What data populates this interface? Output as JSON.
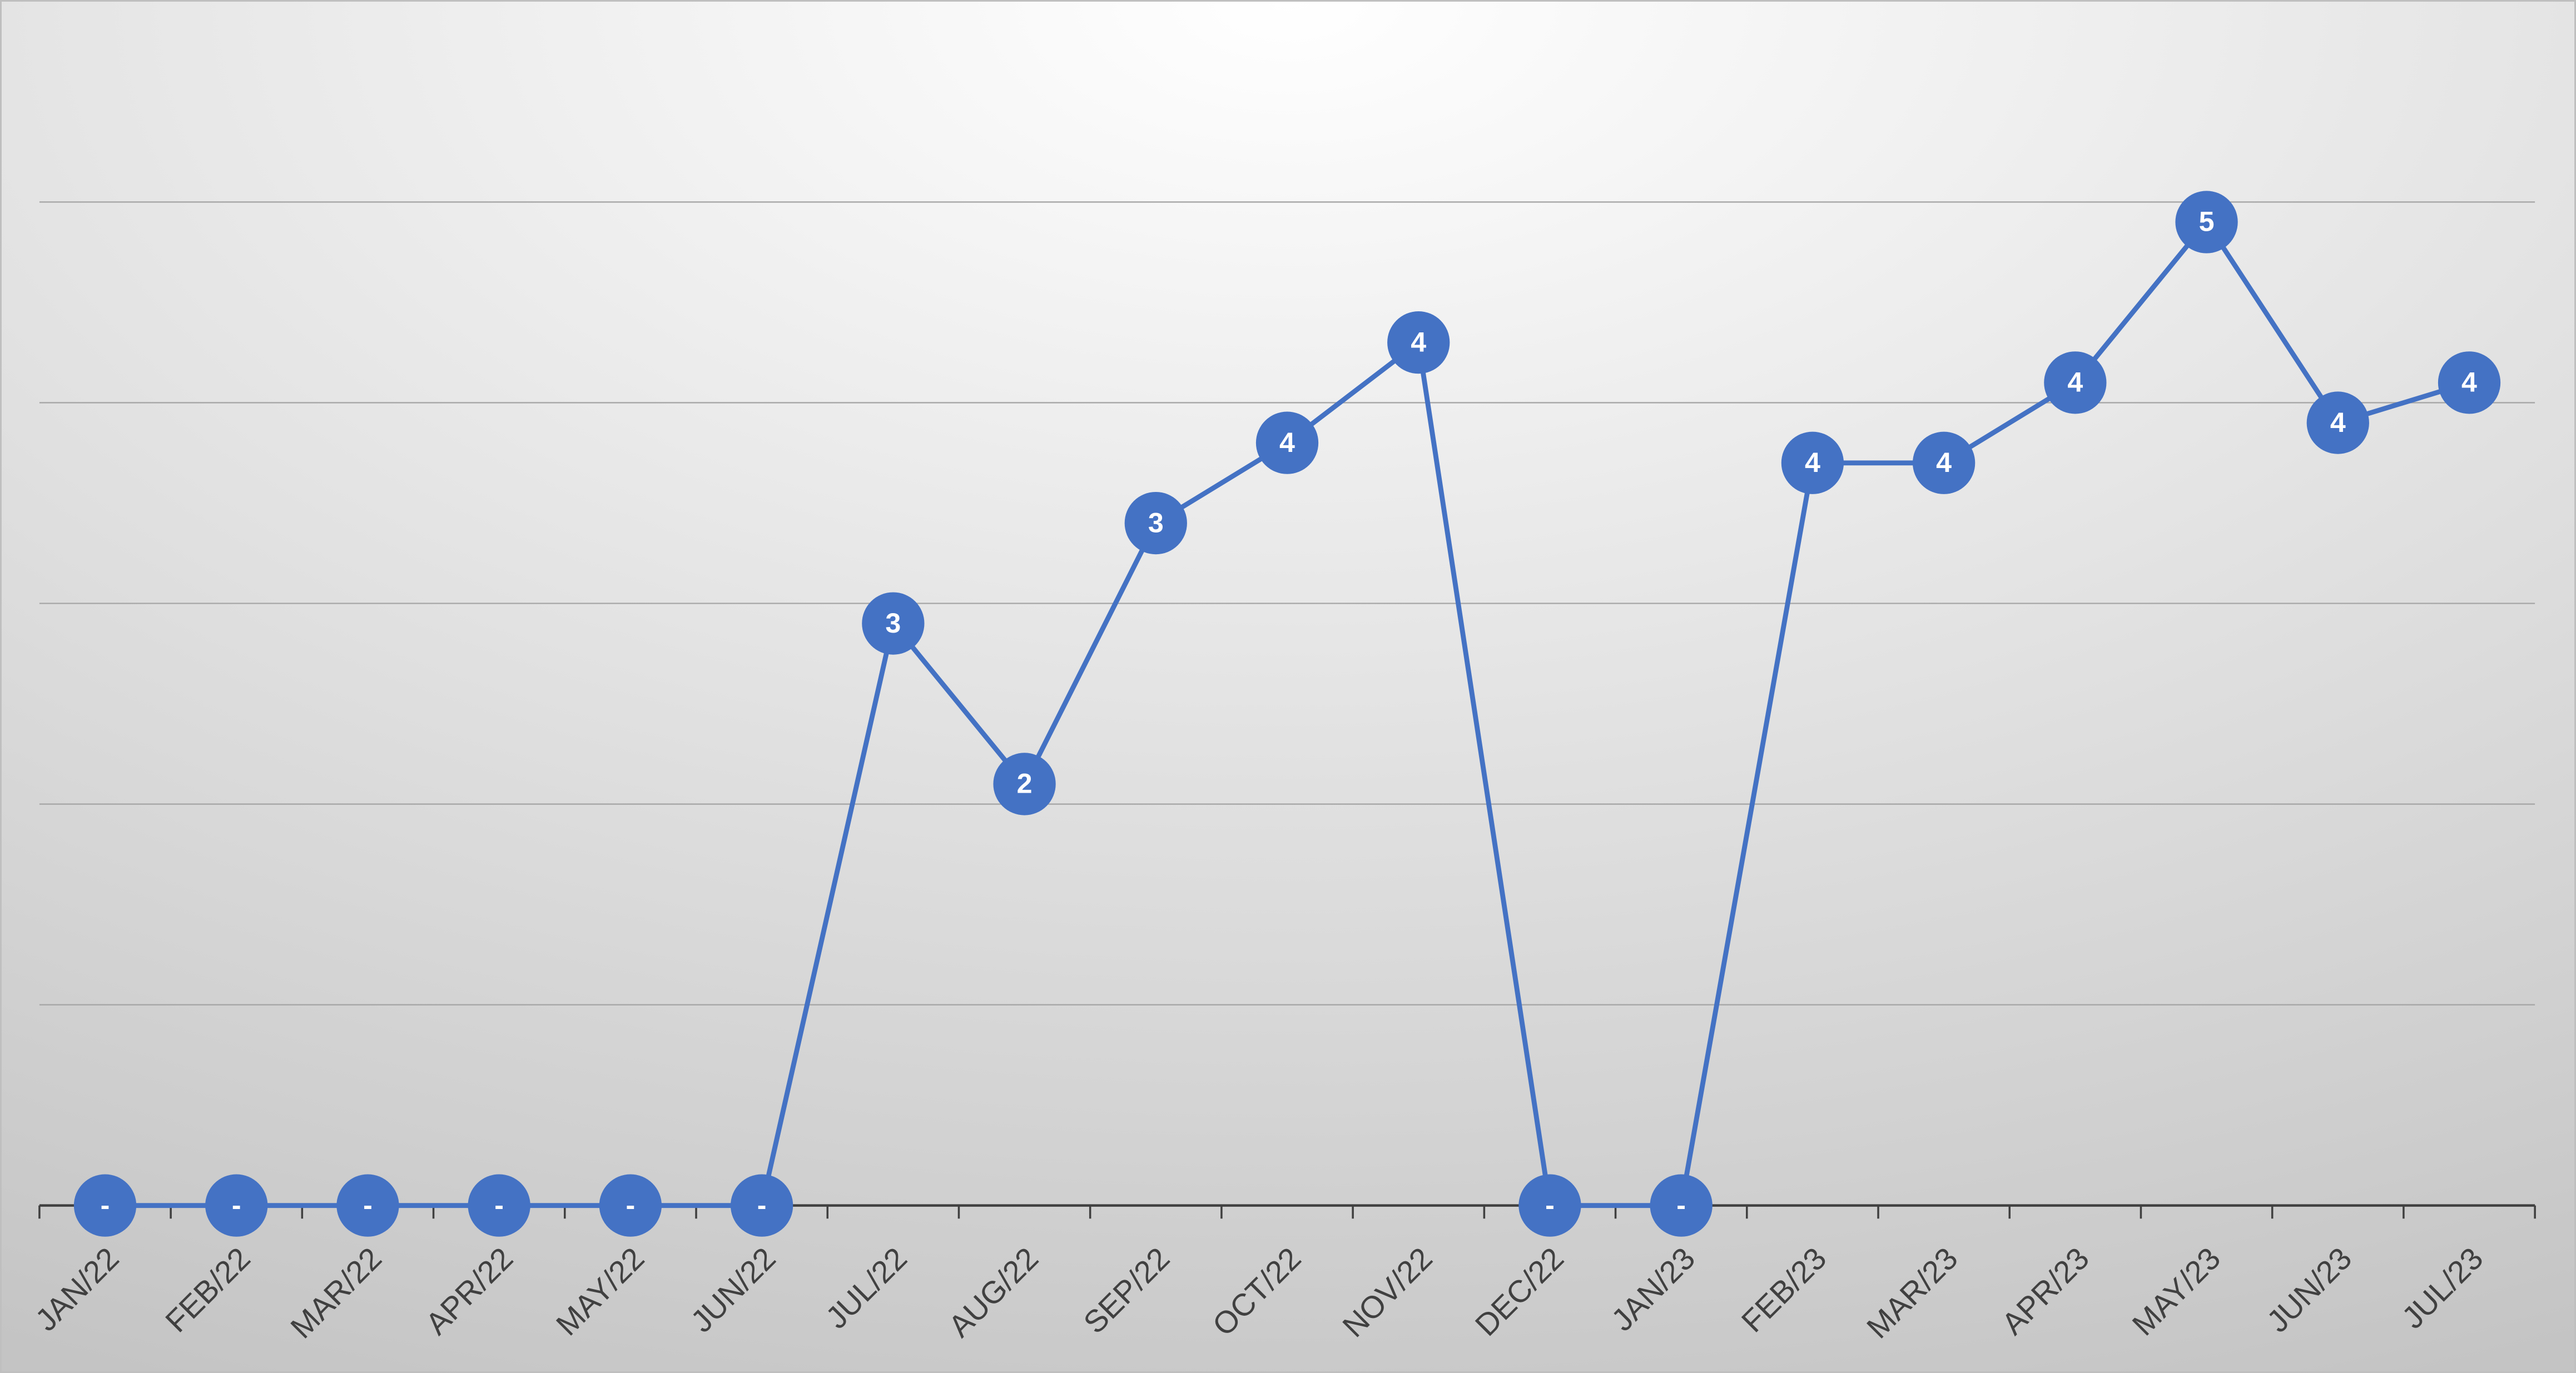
{
  "chart_data": {
    "type": "line",
    "categories": [
      "JAN/22",
      "FEB/22",
      "MAR/22",
      "APR/22",
      "MAY/22",
      "JUN/22",
      "JUL/22",
      "AUG/22",
      "SEP/22",
      "OCT/22",
      "NOV/22",
      "DEC/22",
      "JAN/23",
      "FEB/23",
      "MAR/23",
      "APR/23",
      "MAY/23",
      "JUN/23",
      "JUL/23"
    ],
    "values": [
      0,
      0,
      0,
      0,
      0,
      0,
      2.9,
      2.1,
      3.4,
      3.8,
      4.3,
      0,
      0,
      3.7,
      3.7,
      4.1,
      4.9,
      3.9,
      4.1
    ],
    "value_labels": [
      "-",
      "-",
      "-",
      "-",
      "-",
      "-",
      "3",
      "2",
      "3",
      "4",
      "4",
      "-",
      "-",
      "4",
      "4",
      "4",
      "5",
      "4",
      "4"
    ],
    "color": "#4472c4",
    "ylim": [
      0,
      5
    ],
    "yticks": [
      0,
      1,
      2,
      3,
      4,
      5
    ],
    "grid": true
  }
}
